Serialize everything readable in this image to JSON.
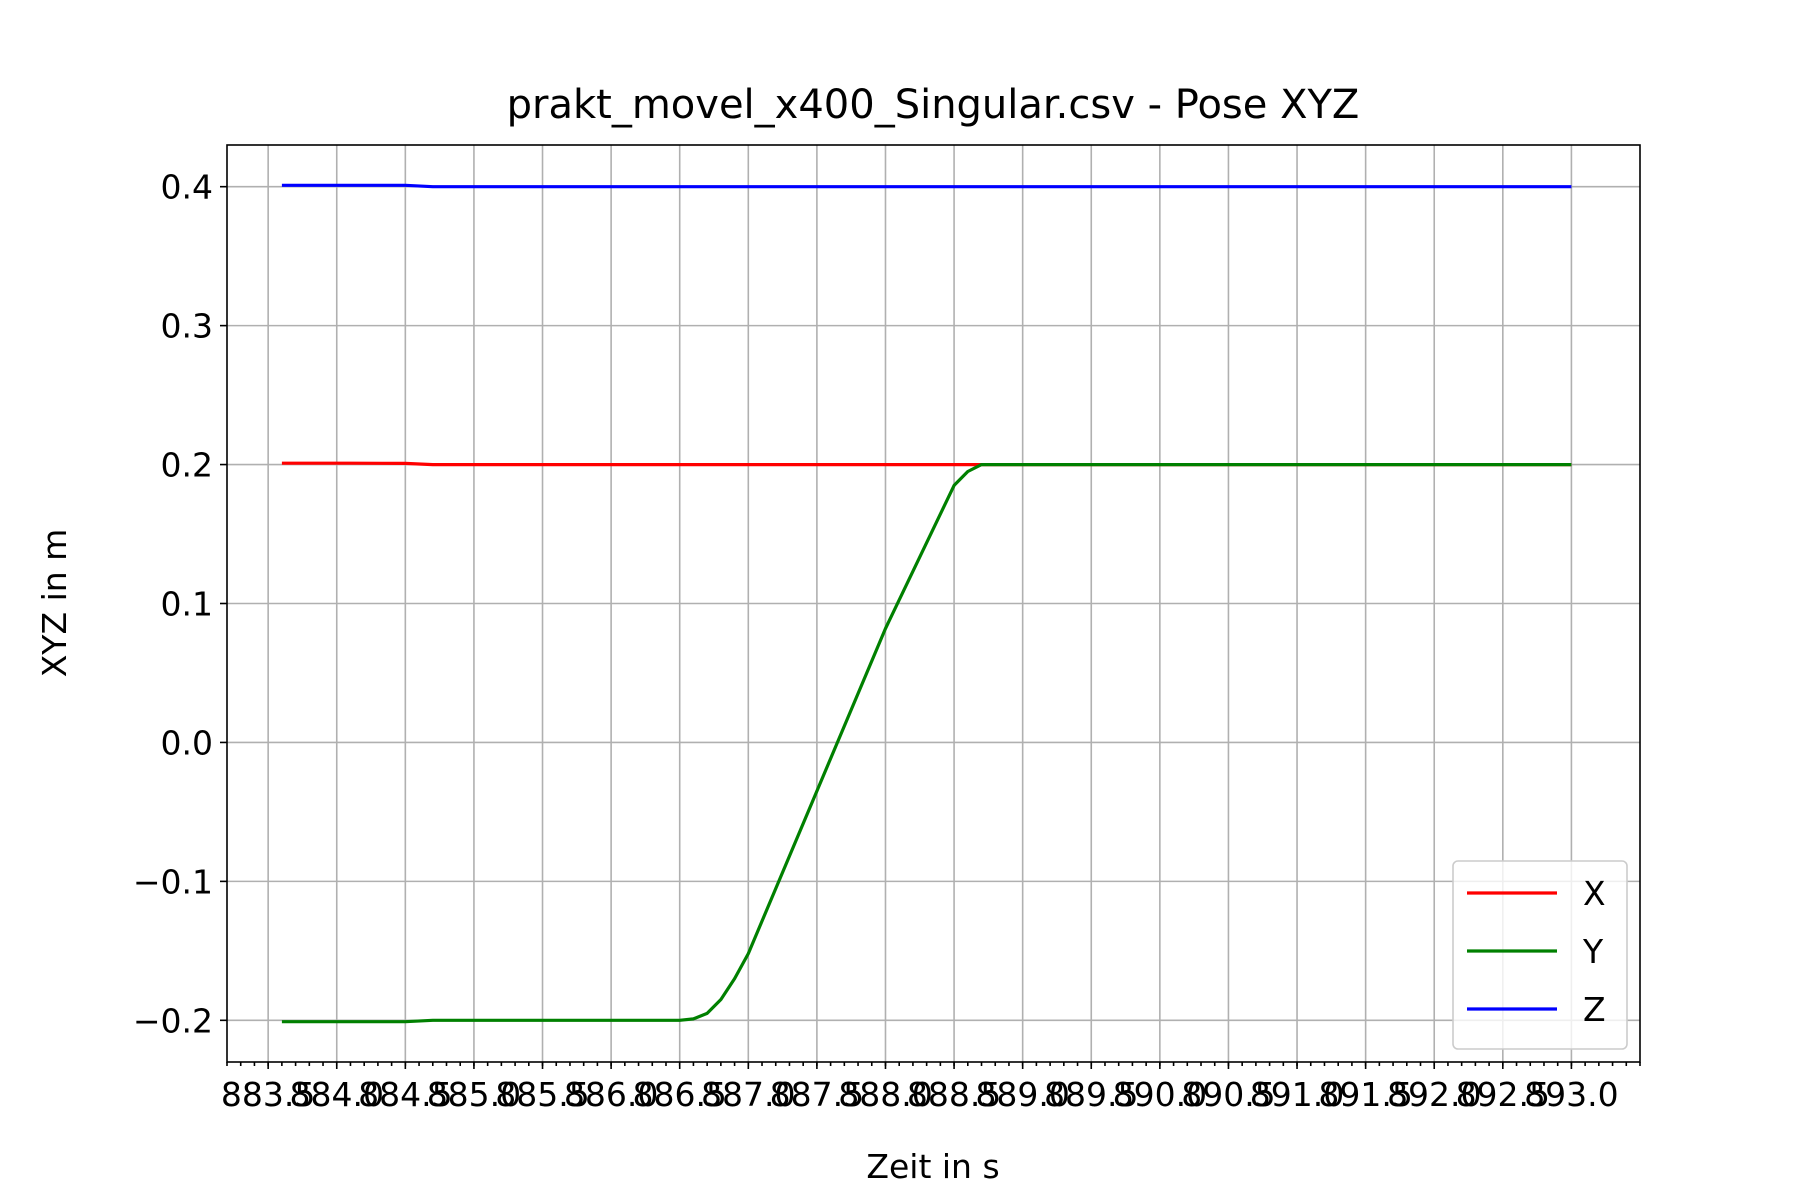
{
  "chart_data": {
    "type": "line",
    "title": "prakt_movel_x400_Singular.csv - Pose XYZ",
    "xlabel": "Zeit in s",
    "ylabel": "XYZ in m",
    "xlim": [
      883.2,
      893.5
    ],
    "ylim": [
      -0.23,
      0.43
    ],
    "x_ticks": [
      883.5,
      884.0,
      884.5,
      885.0,
      885.5,
      886.0,
      886.5,
      887.0,
      887.5,
      888.0,
      888.5,
      889.0,
      889.5,
      890.0,
      890.5,
      891.0,
      891.5,
      892.0,
      892.5,
      893.0
    ],
    "x_tick_labels": [
      "883.5",
      "884.0",
      "884.5",
      "885.0",
      "885.5",
      "886.0",
      "886.5",
      "887.0",
      "887.5",
      "888.0",
      "888.5",
      "889.0",
      "889.5",
      "890.0",
      "890.5",
      "891.0",
      "891.5",
      "892.0",
      "892.5",
      "893.0"
    ],
    "y_ticks": [
      -0.2,
      -0.1,
      0.0,
      0.1,
      0.2,
      0.3,
      0.4
    ],
    "y_tick_labels": [
      "−0.2",
      "−0.1",
      "0.0",
      "0.1",
      "0.2",
      "0.3",
      "0.4"
    ],
    "grid": true,
    "legend_position": "bottom-right",
    "series": [
      {
        "name": "X",
        "color": "#ff0000",
        "x": [
          883.6,
          884.1,
          884.5,
          884.7,
          885.0,
          887.0,
          888.8,
          889.0,
          893.0
        ],
        "y": [
          0.201,
          0.201,
          0.2008,
          0.2,
          0.2,
          0.2,
          0.2,
          0.2,
          0.2
        ]
      },
      {
        "name": "Y",
        "color": "#008000",
        "x": [
          883.6,
          884.5,
          884.7,
          885.5,
          886.5,
          886.6,
          886.7,
          886.8,
          886.9,
          887.0,
          888.0,
          888.5,
          888.6,
          888.7,
          888.8,
          889.0,
          893.0
        ],
        "y": [
          -0.201,
          -0.201,
          -0.2,
          -0.2,
          -0.2,
          -0.199,
          -0.195,
          -0.185,
          -0.17,
          -0.152,
          0.082,
          0.185,
          0.195,
          0.2,
          0.2,
          0.2,
          0.2
        ]
      },
      {
        "name": "Z",
        "color": "#0000ff",
        "x": [
          883.6,
          884.5,
          884.7,
          885.0,
          887.0,
          889.0,
          893.0
        ],
        "y": [
          0.401,
          0.401,
          0.4,
          0.4,
          0.4,
          0.4,
          0.4
        ]
      }
    ]
  }
}
